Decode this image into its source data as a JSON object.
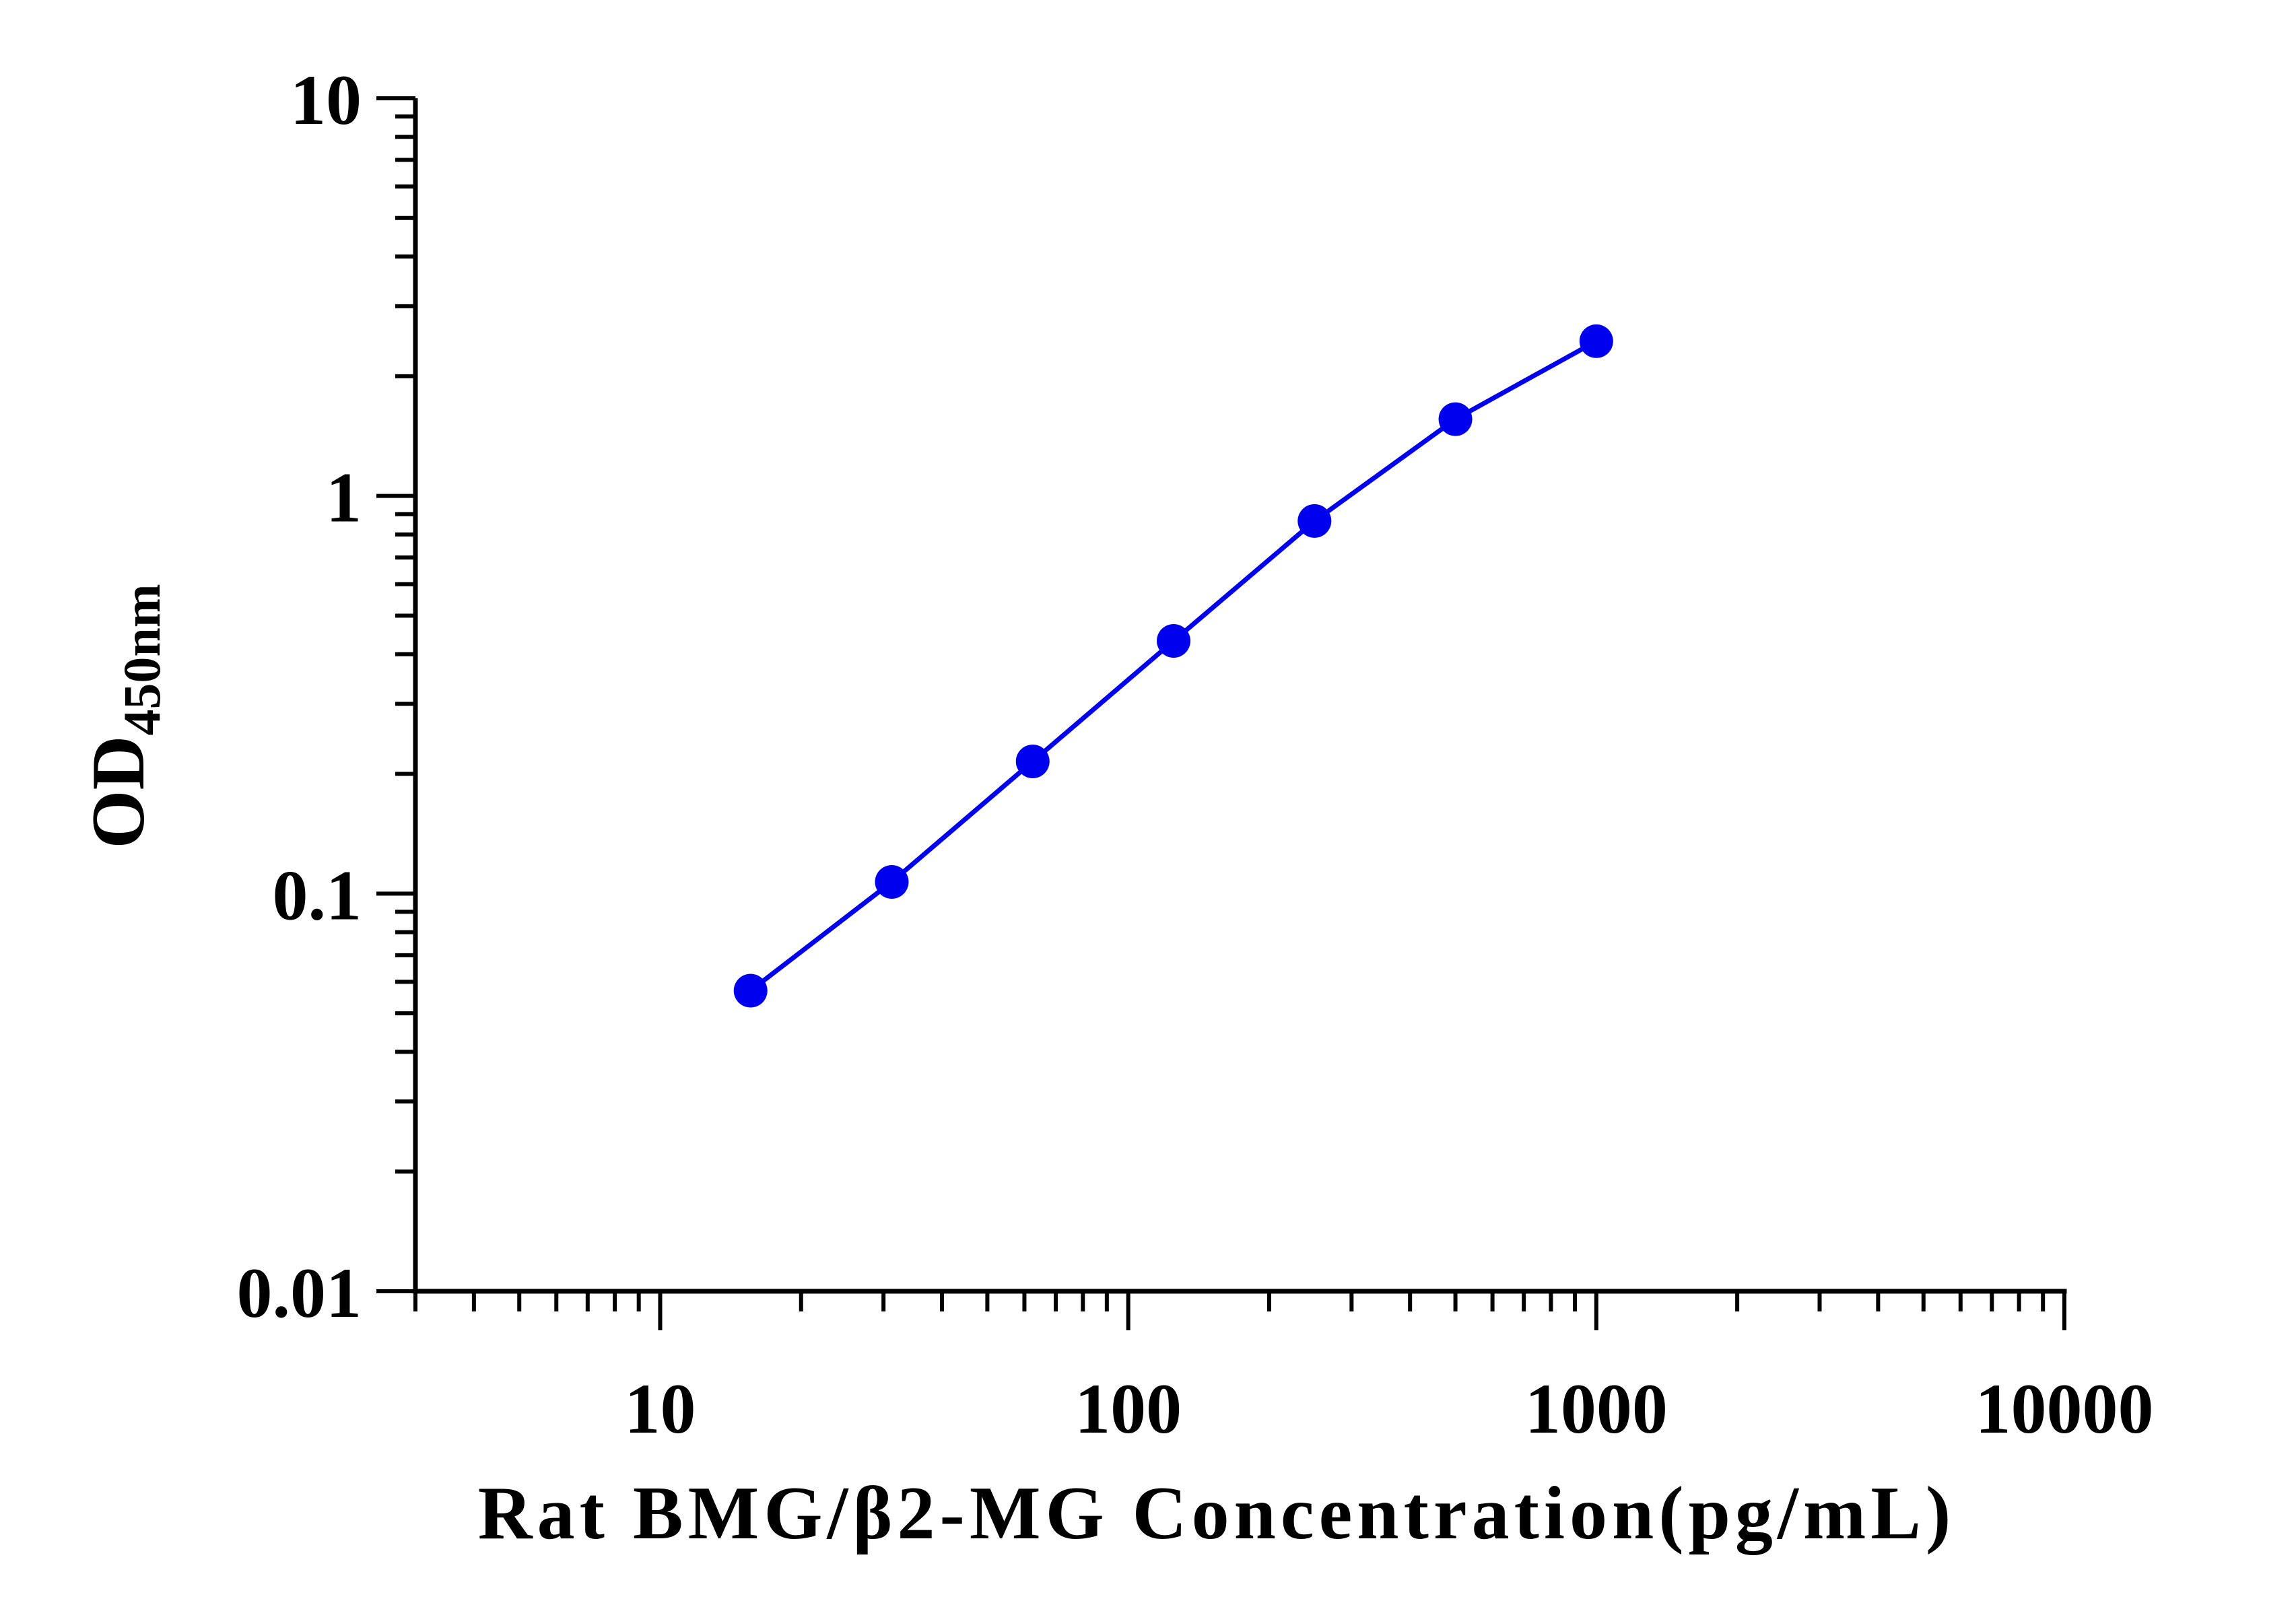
{
  "chart_data": {
    "type": "line",
    "xscale": "log",
    "yscale": "log",
    "xlim": [
      3,
      10000
    ],
    "ylim": [
      0.01,
      10
    ],
    "xlabel": "Rat BMG/β2-MG Concentration(pg/mL)",
    "ylabel": {
      "main": "OD",
      "subscript": "450nm"
    },
    "x_tick_labels": [
      "10",
      "100",
      "1000",
      "10000"
    ],
    "y_tick_labels": [
      "0.01",
      "0.1",
      "1",
      "10"
    ],
    "x_major_ticks": [
      10,
      100,
      1000,
      10000
    ],
    "y_major_ticks": [
      0.01,
      0.1,
      1,
      10
    ],
    "grid": false,
    "legend": "none",
    "series": [
      {
        "color": "#0000ee",
        "marker": "circle",
        "x": [
          15.6,
          31.25,
          62.5,
          125,
          250,
          500,
          1000
        ],
        "y": [
          0.057,
          0.107,
          0.215,
          0.432,
          0.865,
          1.56,
          2.45
        ]
      }
    ]
  }
}
